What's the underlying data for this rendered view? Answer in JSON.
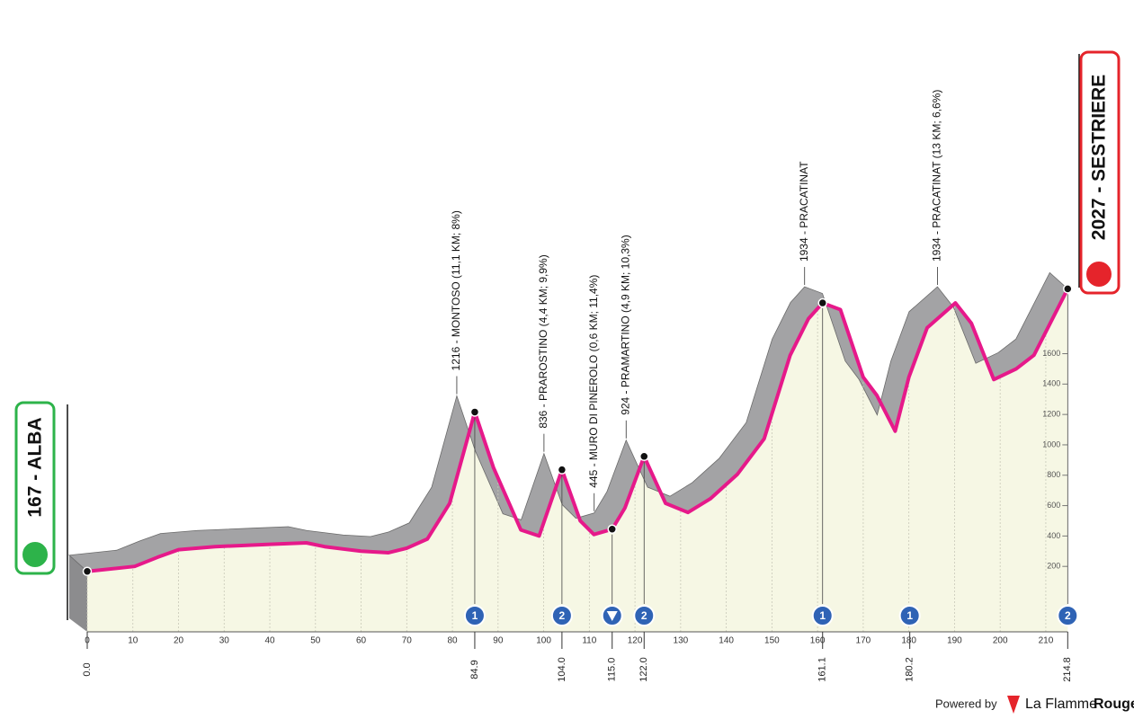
{
  "chart_data": {
    "type": "area",
    "start_label": "167 - ALBA",
    "finish_label": "2027 - SESTRIERE",
    "x": [
      0,
      10.4,
      15.4,
      20,
      28,
      40,
      48,
      52,
      60,
      66,
      70,
      74.5,
      79.4,
      84.9,
      89,
      95,
      99,
      104,
      108,
      111,
      115,
      117.8,
      122,
      126.7,
      131.6,
      136.5,
      142.4,
      148.3,
      154,
      158,
      161.1,
      165,
      170,
      173,
      177,
      180,
      184,
      190.2,
      193.7,
      198.6,
      203.5,
      207.4,
      214.8
    ],
    "values": [
      167,
      200,
      260,
      310,
      330,
      345,
      355,
      330,
      300,
      290,
      320,
      380,
      615,
      1216,
      850,
      440,
      400,
      836,
      500,
      410,
      445,
      585,
      924,
      615,
      555,
      645,
      805,
      1040,
      1590,
      1830,
      1934,
      1890,
      1445,
      1325,
      1090,
      1445,
      1770,
      1934,
      1800,
      1430,
      1500,
      1590,
      2027
    ],
    "color": "#e6198a",
    "xlim": [
      0,
      214.8
    ],
    "xticks": [
      0,
      10,
      20,
      30,
      40,
      50,
      60,
      70,
      80,
      90,
      100,
      110,
      120,
      130,
      140,
      150,
      160,
      170,
      180,
      190,
      200,
      210
    ],
    "ylim": [
      0,
      2100
    ],
    "yticks": [
      200,
      400,
      600,
      800,
      1000,
      1200,
      1400,
      1600
    ],
    "grid": true,
    "km_marks": [
      {
        "value": 0,
        "label": "0.0"
      },
      84.9,
      {
        "value": 104,
        "label": "104.0"
      },
      {
        "value": 115,
        "label": "115.0"
      },
      {
        "value": 122,
        "label": "122.0"
      },
      161.1,
      180.2,
      214.8
    ],
    "climb_categories": [
      null,
      "1",
      "2",
      null,
      "2",
      "1",
      "1",
      "2"
    ],
    "annotations": [
      {
        "text": "1216 - MONTOSO (11,1 KM; 8%)",
        "x": 84.9
      },
      {
        "text": "836 - PRAROSTINO (4,4 KM; 9,9%)",
        "x": 104
      },
      {
        "text": "445 - MURO DI PINEROLO (0,6 KM; 11,4%)",
        "x": 115
      },
      {
        "text": "924 - PRAMARTINO (4,9 KM; 10,3%)",
        "x": 122
      },
      {
        "text": "1934 - PRACATINAT",
        "x": 161.1
      },
      {
        "text": "1934 - PRACATINAT (13 KM; 6,6%)",
        "x": 190.2
      }
    ]
  },
  "footer": {
    "powered_by": "Powered by",
    "brand_a": "La Flamme",
    "brand_b": "Rouge"
  }
}
